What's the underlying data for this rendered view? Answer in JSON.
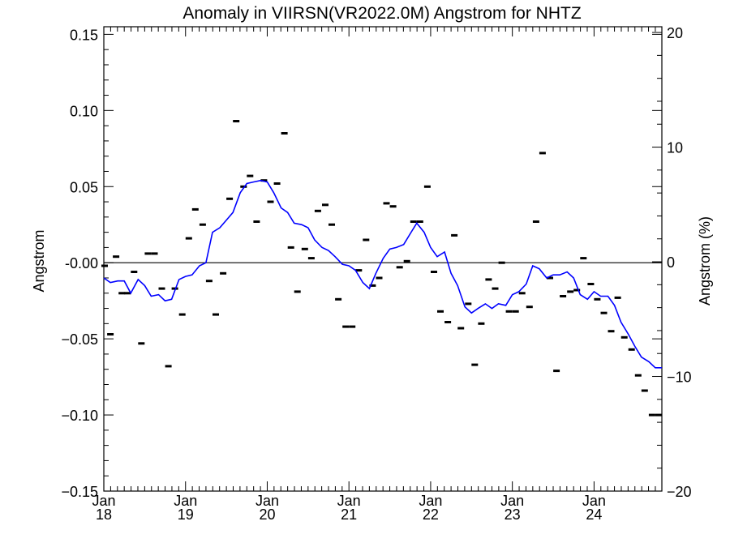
{
  "chart_data": {
    "type": "scatter",
    "title": "Anomaly in VIIRSN(VR2022.0M) Angstrom for NHTZ",
    "ylabel": "Angstrom",
    "y2label": "Angstrom (%)",
    "xlabel": "",
    "xlim": [
      2018.0,
      2024.83
    ],
    "ylim": [
      -0.15,
      0.155
    ],
    "y2lim": [
      -20,
      20.5
    ],
    "x_tick_values": [
      2018,
      2019,
      2020,
      2021,
      2022,
      2023,
      2024
    ],
    "x_tick_labels": [
      [
        "Jan",
        "18"
      ],
      [
        "Jan",
        "19"
      ],
      [
        "Jan",
        "20"
      ],
      [
        "Jan",
        "21"
      ],
      [
        "Jan",
        "22"
      ],
      [
        "Jan",
        "23"
      ],
      [
        "Jan",
        "24"
      ]
    ],
    "y_tick_values": [
      -0.15,
      -0.1,
      -0.05,
      0.0,
      0.05,
      0.1,
      0.15
    ],
    "y_tick_labels": [
      "−0.15",
      "−0.10",
      "−0.05",
      "-0.00",
      "0.05",
      "0.10",
      "0.15"
    ],
    "y2_tick_values": [
      -20,
      -10,
      0,
      10,
      20
    ],
    "y2_tick_labels": [
      "−20",
      "−10",
      "0",
      "10",
      "20"
    ],
    "grid": false,
    "zero_line": 0.0,
    "series": [
      {
        "name": "",
        "type": "scatter",
        "marker": "dash",
        "color": "#000000",
        "x": [
          2018.01,
          2018.08,
          2018.15,
          2018.22,
          2018.29,
          2018.37,
          2018.46,
          2018.54,
          2018.62,
          2018.71,
          2018.79,
          2018.87,
          2018.96,
          2019.04,
          2019.12,
          2019.21,
          2019.29,
          2019.37,
          2019.46,
          2019.54,
          2019.62,
          2019.71,
          2019.79,
          2019.87,
          2019.96,
          2020.04,
          2020.12,
          2020.21,
          2020.29,
          2020.37,
          2020.46,
          2020.54,
          2020.62,
          2020.71,
          2020.79,
          2020.87,
          2020.96,
          2021.04,
          2021.12,
          2021.21,
          2021.29,
          2021.37,
          2021.46,
          2021.54,
          2021.62,
          2021.71,
          2021.79,
          2021.87,
          2021.96,
          2022.04,
          2022.12,
          2022.21,
          2022.29,
          2022.37,
          2022.46,
          2022.54,
          2022.62,
          2022.71,
          2022.79,
          2022.87,
          2022.96,
          2023.04,
          2023.12,
          2023.21,
          2023.29,
          2023.37,
          2023.46,
          2023.54,
          2023.62,
          2023.71,
          2023.79,
          2023.87,
          2023.96,
          2024.04,
          2024.12,
          2024.21,
          2024.29,
          2024.37,
          2024.46,
          2024.54,
          2024.62,
          2024.71,
          2024.79
        ],
        "y": [
          -0.002,
          -0.047,
          0.004,
          -0.02,
          -0.02,
          -0.006,
          -0.053,
          0.006,
          0.006,
          -0.017,
          -0.068,
          -0.017,
          -0.034,
          0.016,
          0.035,
          0.025,
          -0.012,
          -0.034,
          -0.007,
          0.042,
          0.093,
          0.05,
          0.057,
          0.027,
          0.054,
          0.04,
          0.052,
          0.085,
          0.01,
          -0.019,
          0.009,
          0.003,
          0.034,
          0.038,
          0.025,
          -0.024,
          -0.042,
          -0.042,
          -0.005,
          0.015,
          -0.015,
          -0.01,
          0.039,
          0.037,
          -0.003,
          0.001,
          0.027,
          0.027,
          0.05,
          -0.006,
          -0.032,
          -0.039,
          0.018,
          -0.043,
          -0.027,
          -0.067,
          -0.04,
          -0.011,
          -0.017,
          0.0,
          -0.032,
          -0.032,
          -0.02,
          -0.029,
          0.027,
          0.072,
          -0.01,
          -0.071,
          -0.022,
          -0.019,
          -0.018,
          0.003,
          -0.014,
          -0.024,
          -0.033,
          -0.045,
          -0.023,
          -0.049,
          -0.057,
          -0.074,
          -0.084,
          -0.1,
          -0.1
        ]
      },
      {
        "name": "",
        "type": "line",
        "color": "#0000ff",
        "x": [
          2018.0,
          2018.08,
          2018.17,
          2018.25,
          2018.33,
          2018.42,
          2018.5,
          2018.58,
          2018.67,
          2018.75,
          2018.83,
          2018.92,
          2019.0,
          2019.08,
          2019.17,
          2019.25,
          2019.33,
          2019.42,
          2019.5,
          2019.58,
          2019.67,
          2019.75,
          2019.83,
          2019.92,
          2020.0,
          2020.08,
          2020.17,
          2020.25,
          2020.33,
          2020.42,
          2020.5,
          2020.58,
          2020.67,
          2020.75,
          2020.83,
          2020.92,
          2021.0,
          2021.08,
          2021.17,
          2021.25,
          2021.33,
          2021.42,
          2021.5,
          2021.58,
          2021.67,
          2021.75,
          2021.83,
          2021.92,
          2022.0,
          2022.08,
          2022.17,
          2022.25,
          2022.33,
          2022.42,
          2022.5,
          2022.58,
          2022.67,
          2022.75,
          2022.83,
          2022.92,
          2023.0,
          2023.08,
          2023.17,
          2023.25,
          2023.33,
          2023.42,
          2023.5,
          2023.58,
          2023.67,
          2023.75,
          2023.83,
          2023.92,
          2024.0,
          2024.08,
          2024.17,
          2024.25,
          2024.33,
          2024.42,
          2024.5,
          2024.58,
          2024.67,
          2024.75,
          2024.83
        ],
        "y": [
          -0.01,
          -0.013,
          -0.012,
          -0.012,
          -0.02,
          -0.011,
          -0.015,
          -0.022,
          -0.021,
          -0.025,
          -0.024,
          -0.011,
          -0.009,
          -0.008,
          -0.002,
          0.0,
          0.02,
          0.023,
          0.028,
          0.033,
          0.046,
          0.052,
          0.053,
          0.054,
          0.053,
          0.046,
          0.036,
          0.033,
          0.026,
          0.025,
          0.023,
          0.015,
          0.01,
          0.008,
          0.004,
          -0.001,
          -0.002,
          -0.005,
          -0.013,
          -0.017,
          -0.007,
          0.003,
          0.009,
          0.01,
          0.012,
          0.019,
          0.026,
          0.02,
          0.01,
          0.004,
          0.007,
          -0.007,
          -0.015,
          -0.029,
          -0.033,
          -0.03,
          -0.027,
          -0.03,
          -0.027,
          -0.028,
          -0.021,
          -0.019,
          -0.014,
          -0.002,
          -0.004,
          -0.01,
          -0.008,
          -0.008,
          -0.006,
          -0.01,
          -0.021,
          -0.024,
          -0.019,
          -0.022,
          -0.022,
          -0.028,
          -0.039,
          -0.047,
          -0.055,
          -0.062,
          -0.065,
          -0.069,
          -0.069
        ]
      }
    ]
  }
}
